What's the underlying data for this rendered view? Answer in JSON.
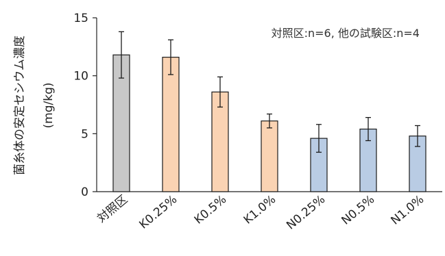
{
  "chart_data": {
    "type": "bar",
    "title": "",
    "ylabel_main": "菌糸体の安定セシウム濃度",
    "ylabel_unit": "(mg/kg)",
    "annotation": "対照区:n=6, 他の試験区:n=4",
    "categories": [
      "対照区",
      "K0.25%",
      "K0.5%",
      "K1.0%",
      "N0.25%",
      "N0.5%",
      "N1.0%"
    ],
    "values": [
      11.8,
      11.6,
      8.6,
      6.1,
      4.6,
      5.4,
      4.8
    ],
    "errors": [
      2.0,
      1.5,
      1.3,
      0.6,
      1.2,
      1.0,
      0.9
    ],
    "colors": [
      "#c8c8c8",
      "#fad3b3",
      "#fad3b3",
      "#fad3b3",
      "#b9cce4",
      "#b9cce4",
      "#b9cce4"
    ],
    "ylim": [
      0,
      15
    ],
    "yticks": [
      0,
      5,
      10,
      15
    ],
    "grid": false,
    "legend": "none"
  }
}
